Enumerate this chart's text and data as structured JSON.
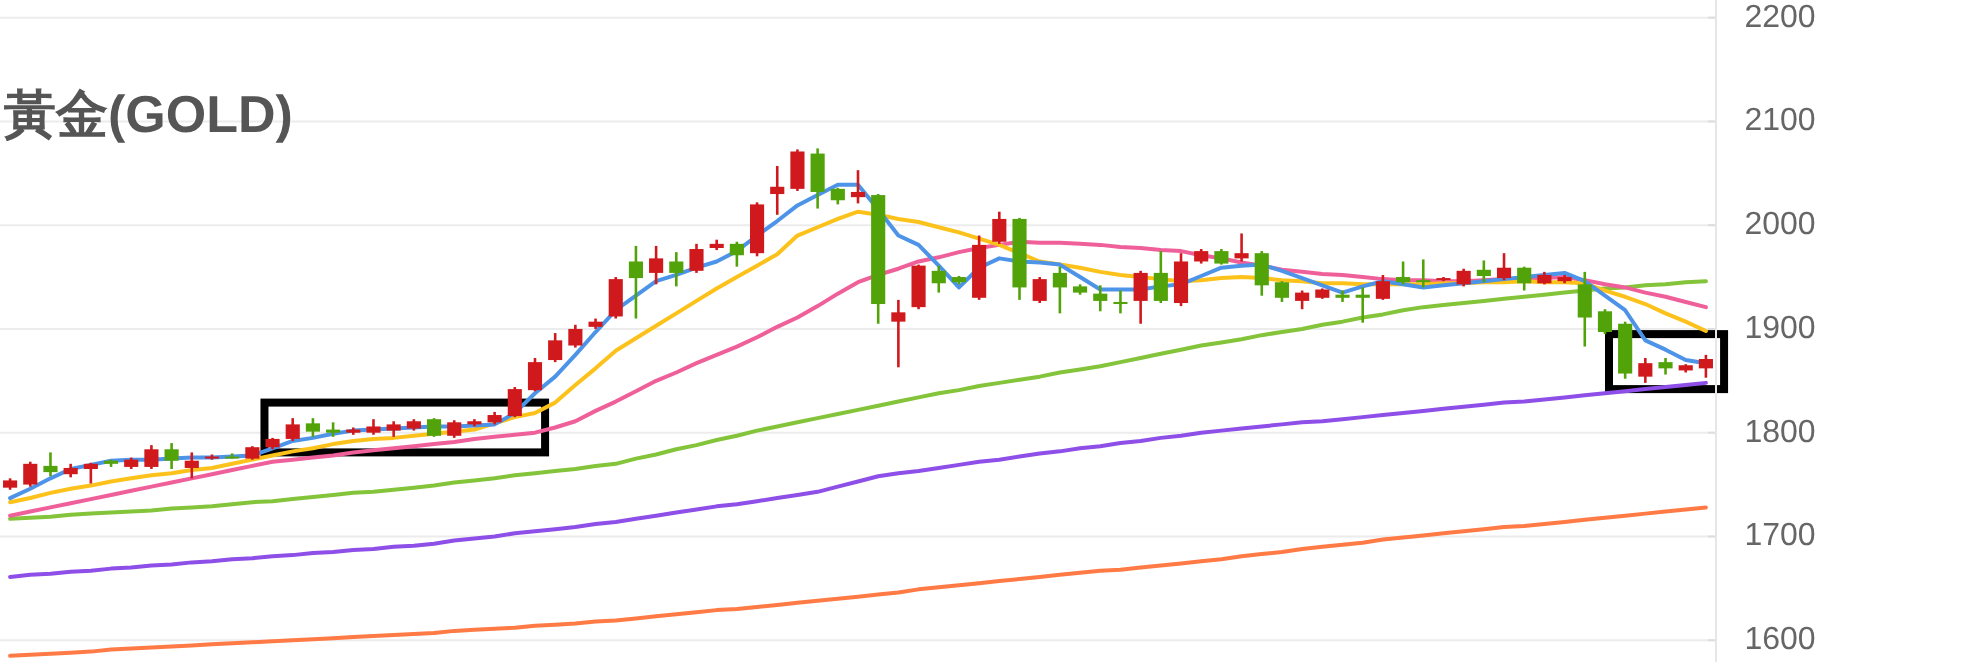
{
  "chart_data": [
    {
      "type": "candlestick",
      "title": "黃金(GOLD)",
      "categories": [
        null,
        null,
        null,
        null,
        null,
        null,
        null,
        null,
        null,
        null,
        null,
        null,
        null,
        null,
        null,
        null,
        null,
        null,
        null,
        null,
        null,
        null,
        null,
        null,
        null,
        null,
        null,
        null,
        null,
        null,
        null,
        null,
        null,
        null,
        null,
        null,
        null,
        null,
        null,
        null,
        null,
        null,
        null,
        null,
        null,
        null,
        null,
        null,
        null,
        null,
        null,
        null,
        null,
        null,
        null,
        null,
        null,
        null,
        null,
        null,
        null,
        null,
        null,
        null,
        null,
        null,
        null,
        null,
        null,
        null,
        null,
        null,
        null,
        null,
        null,
        null,
        null,
        null,
        null,
        null,
        null,
        null,
        null,
        null,
        null
      ],
      "ohlc": [
        [
          1747,
          1756,
          1745,
          1754
        ],
        [
          1750,
          1772,
          1748,
          1770
        ],
        [
          1768,
          1781,
          1758,
          1762
        ],
        [
          1760,
          1770,
          1757,
          1766
        ],
        [
          1765,
          1771,
          1751,
          1770
        ],
        [
          1773,
          1774,
          1767,
          1770
        ],
        [
          1767,
          1776,
          1765,
          1774
        ],
        [
          1767,
          1788,
          1765,
          1784
        ],
        [
          1784,
          1790,
          1765,
          1773
        ],
        [
          1766,
          1781,
          1756,
          1773
        ],
        [
          1776,
          1779,
          1774,
          1777
        ],
        [
          1777,
          1780,
          1775,
          1776
        ],
        [
          1775,
          1787,
          1774,
          1786
        ],
        [
          1786,
          1795,
          1784,
          1794
        ],
        [
          1794,
          1814,
          1792,
          1808
        ],
        [
          1809,
          1814,
          1796,
          1801
        ],
        [
          1803,
          1810,
          1796,
          1800
        ],
        [
          1800,
          1805,
          1798,
          1803
        ],
        [
          1800,
          1813,
          1798,
          1806
        ],
        [
          1802,
          1811,
          1796,
          1808
        ],
        [
          1804,
          1813,
          1802,
          1811
        ],
        [
          1813,
          1814,
          1796,
          1797
        ],
        [
          1797,
          1812,
          1795,
          1810
        ],
        [
          1808,
          1813,
          1806,
          1811
        ],
        [
          1810,
          1820,
          1808,
          1817
        ],
        [
          1816,
          1844,
          1815,
          1842
        ],
        [
          1841,
          1872,
          1840,
          1868
        ],
        [
          1870,
          1896,
          1868,
          1889
        ],
        [
          1884,
          1904,
          1882,
          1900
        ],
        [
          1902,
          1910,
          1900,
          1907
        ],
        [
          1912,
          1950,
          1910,
          1948
        ],
        [
          1965,
          1980,
          1910,
          1949
        ],
        [
          1954,
          1980,
          1943,
          1968
        ],
        [
          1965,
          1974,
          1941,
          1954
        ],
        [
          1956,
          1982,
          1954,
          1977
        ],
        [
          1978,
          1986,
          1976,
          1982
        ],
        [
          1982,
          1984,
          1960,
          1971
        ],
        [
          1973,
          2022,
          1970,
          2020
        ],
        [
          2030,
          2057,
          2010,
          2037
        ],
        [
          2035,
          2073,
          2033,
          2071
        ],
        [
          2069,
          2074,
          2016,
          2032
        ],
        [
          2035,
          2036,
          2020,
          2024
        ],
        [
          2027,
          2053,
          2021,
          2032
        ],
        [
          2029,
          2030,
          1905,
          1924
        ],
        [
          1907,
          1928,
          1863,
          1916
        ],
        [
          1921,
          1962,
          1919,
          1961
        ],
        [
          1956,
          1961,
          1935,
          1944
        ],
        [
          1950,
          1951,
          1943,
          1945
        ],
        [
          1930,
          1990,
          1928,
          1981
        ],
        [
          1984,
          2013,
          1982,
          2006
        ],
        [
          2006,
          2007,
          1928,
          1940
        ],
        [
          1927,
          1950,
          1925,
          1948
        ],
        [
          1954,
          1960,
          1915,
          1940
        ],
        [
          1941,
          1943,
          1933,
          1935
        ],
        [
          1934,
          1942,
          1917,
          1927
        ],
        [
          1926,
          1937,
          1915,
          1924
        ],
        [
          1927,
          1956,
          1905,
          1954
        ],
        [
          1954,
          1975,
          1925,
          1927
        ],
        [
          1925,
          1973,
          1922,
          1965
        ],
        [
          1965,
          1977,
          1963,
          1975
        ],
        [
          1975,
          1977,
          1962,
          1963
        ],
        [
          1968,
          1992,
          1965,
          1973
        ],
        [
          1973,
          1975,
          1932,
          1942
        ],
        [
          1945,
          1946,
          1926,
          1930
        ],
        [
          1927,
          1937,
          1919,
          1935
        ],
        [
          1930,
          1939,
          1929,
          1938
        ],
        [
          1933,
          1937,
          1926,
          1930
        ],
        [
          1933,
          1940,
          1906,
          1930
        ],
        [
          1929,
          1952,
          1928,
          1946
        ],
        [
          1950,
          1965,
          1943,
          1945
        ],
        [
          1947,
          1967,
          1940,
          1945
        ],
        [
          1948,
          1950,
          1946,
          1949
        ],
        [
          1943,
          1958,
          1941,
          1956
        ],
        [
          1957,
          1966,
          1945,
          1951
        ],
        [
          1949,
          1973,
          1947,
          1959
        ],
        [
          1959,
          1960,
          1937,
          1944
        ],
        [
          1944,
          1955,
          1943,
          1952
        ],
        [
          1946,
          1952,
          1944,
          1950
        ],
        [
          1943,
          1955,
          1883,
          1911
        ],
        [
          1917,
          1919,
          1895,
          1897
        ],
        [
          1905,
          1907,
          1852,
          1857
        ],
        [
          1854,
          1872,
          1848,
          1867
        ],
        [
          1868,
          1872,
          1856,
          1862
        ],
        [
          1860,
          1866,
          1858,
          1865
        ],
        [
          1862,
          1875,
          1853,
          1871
        ]
      ],
      "colors": [
        "#d0191c",
        "#d0191c",
        "#52a30a",
        "#d0191c",
        "#d0191c",
        "#52a30a",
        "#d0191c",
        "#d0191c",
        "#52a30a",
        "#d0191c",
        "#d0191c",
        "#52a30a",
        "#d0191c",
        "#d0191c",
        "#d0191c",
        "#52a30a",
        "#52a30a",
        "#d0191c",
        "#d0191c",
        "#d0191c",
        "#d0191c",
        "#52a30a",
        "#d0191c",
        "#d0191c",
        "#d0191c",
        "#d0191c",
        "#d0191c",
        "#d0191c",
        "#d0191c",
        "#d0191c",
        "#d0191c",
        "#52a30a",
        "#d0191c",
        "#52a30a",
        "#d0191c",
        "#d0191c",
        "#52a30a",
        "#d0191c",
        "#d0191c",
        "#d0191c",
        "#52a30a",
        "#52a30a",
        "#d0191c",
        "#52a30a",
        "#d0191c",
        "#d0191c",
        "#52a30a",
        "#52a30a",
        "#d0191c",
        "#d0191c",
        "#52a30a",
        "#d0191c",
        "#52a30a",
        "#52a30a",
        "#52a30a",
        "#52a30a",
        "#d0191c",
        "#52a30a",
        "#d0191c",
        "#d0191c",
        "#52a30a",
        "#d0191c",
        "#52a30a",
        "#52a30a",
        "#d0191c",
        "#d0191c",
        "#52a30a",
        "#52a30a",
        "#d0191c",
        "#52a30a",
        "#52a30a",
        "#d0191c",
        "#d0191c",
        "#52a30a",
        "#d0191c",
        "#52a30a",
        "#d0191c",
        "#d0191c",
        "#52a30a",
        "#52a30a",
        "#52a30a",
        "#d0191c",
        "#52a30a",
        "#d0191c",
        "#d0191c"
      ],
      "ylim": [
        1579,
        2217
      ],
      "yticks": [
        1600,
        1700,
        1800,
        1900,
        2000,
        2100,
        2200
      ],
      "grid": "y",
      "tick_labels": "y"
    },
    {
      "type": "line",
      "categories": [
        null,
        null,
        null,
        null,
        null,
        null,
        null,
        null,
        null,
        null,
        null,
        null,
        null,
        null,
        null,
        null,
        null,
        null,
        null,
        null,
        null,
        null,
        null,
        null,
        null,
        null,
        null,
        null,
        null,
        null,
        null,
        null,
        null,
        null,
        null,
        null,
        null,
        null,
        null,
        null,
        null,
        null,
        null,
        null,
        null,
        null,
        null,
        null,
        null,
        null,
        null,
        null,
        null,
        null,
        null,
        null,
        null,
        null,
        null,
        null,
        null,
        null,
        null,
        null,
        null,
        null,
        null,
        null,
        null,
        null,
        null,
        null,
        null,
        null,
        null,
        null,
        null,
        null,
        null,
        null,
        null,
        null,
        null,
        null,
        null
      ],
      "series": [
        {
          "color": "#ff7a45",
          "values": [
            1585,
            1586,
            1587,
            1588,
            1589,
            1591,
            1592,
            1593,
            1594,
            1595,
            1596,
            1597,
            1598,
            1599,
            1600,
            1601,
            1602,
            1603,
            1604,
            1605,
            1606,
            1607,
            1609,
            1610,
            1611,
            1612,
            1614,
            1615,
            1616,
            1618,
            1619,
            1621,
            1623,
            1625,
            1627,
            1629,
            1630,
            1632,
            1634,
            1636,
            1638,
            1640,
            1642,
            1644,
            1646,
            1649,
            1651,
            1653,
            1655,
            1657,
            1659,
            1661,
            1663,
            1665,
            1667,
            1668,
            1670,
            1672,
            1674,
            1676,
            1678,
            1681,
            1683,
            1685,
            1688,
            1690,
            1692,
            1694,
            1697,
            1699,
            1701,
            1703,
            1705,
            1707,
            1709,
            1710,
            1712,
            1714,
            1716,
            1718,
            1720,
            1722,
            1724,
            1726,
            1728
          ]
        },
        {
          "color": "#8e4fe8",
          "values": [
            1661,
            1663,
            1664,
            1666,
            1667,
            1669,
            1670,
            1672,
            1673,
            1675,
            1676,
            1678,
            1679,
            1681,
            1682,
            1684,
            1685,
            1687,
            1688,
            1690,
            1691,
            1693,
            1696,
            1698,
            1700,
            1703,
            1705,
            1707,
            1709,
            1712,
            1714,
            1717,
            1720,
            1723,
            1726,
            1729,
            1731,
            1734,
            1737,
            1740,
            1743,
            1748,
            1753,
            1758,
            1761,
            1763,
            1766,
            1769,
            1772,
            1774,
            1777,
            1780,
            1782,
            1785,
            1787,
            1790,
            1792,
            1795,
            1797,
            1800,
            1802,
            1804,
            1806,
            1808,
            1810,
            1811,
            1813,
            1815,
            1817,
            1819,
            1821,
            1823,
            1825,
            1827,
            1829,
            1830,
            1832,
            1834,
            1836,
            1838,
            1840,
            1842,
            1844,
            1846,
            1848
          ]
        },
        {
          "color": "#84c43a",
          "values": [
            1717,
            1718,
            1719,
            1721,
            1722,
            1723,
            1724,
            1725,
            1727,
            1728,
            1729,
            1731,
            1733,
            1734,
            1736,
            1738,
            1740,
            1742,
            1743,
            1745,
            1747,
            1749,
            1752,
            1754,
            1756,
            1759,
            1761,
            1763,
            1765,
            1768,
            1770,
            1775,
            1779,
            1784,
            1788,
            1793,
            1797,
            1802,
            1806,
            1810,
            1814,
            1818,
            1822,
            1826,
            1830,
            1834,
            1838,
            1841,
            1845,
            1848,
            1851,
            1854,
            1858,
            1861,
            1864,
            1868,
            1872,
            1876,
            1880,
            1884,
            1887,
            1890,
            1894,
            1897,
            1900,
            1904,
            1907,
            1911,
            1914,
            1918,
            1921,
            1923,
            1925,
            1927,
            1929,
            1931,
            1933,
            1935,
            1937,
            1939,
            1940,
            1942,
            1943,
            1945,
            1946
          ]
        },
        {
          "color": "#ef5f9a",
          "values": [
            1720,
            1724,
            1728,
            1732,
            1736,
            1740,
            1744,
            1748,
            1752,
            1756,
            1760,
            1764,
            1768,
            1772,
            1774,
            1776,
            1778,
            1781,
            1783,
            1785,
            1787,
            1789,
            1791,
            1794,
            1796,
            1798,
            1800,
            1805,
            1811,
            1821,
            1830,
            1840,
            1850,
            1858,
            1867,
            1875,
            1883,
            1892,
            1902,
            1911,
            1922,
            1934,
            1945,
            1952,
            1958,
            1965,
            1969,
            1974,
            1978,
            1981,
            1984,
            1983,
            1983,
            1982,
            1981,
            1979,
            1978,
            1976,
            1975,
            1971,
            1968,
            1964,
            1961,
            1957,
            1955,
            1953,
            1952,
            1950,
            1948,
            1947,
            1947,
            1946,
            1946,
            1947,
            1948,
            1948,
            1949,
            1950,
            1947,
            1943,
            1940,
            1935,
            1931,
            1926,
            1921
          ]
        },
        {
          "color": "#fcc21b",
          "values": [
            1733,
            1737,
            1742,
            1746,
            1749,
            1753,
            1756,
            1759,
            1761,
            1764,
            1766,
            1770,
            1774,
            1778,
            1782,
            1785,
            1789,
            1792,
            1794,
            1795,
            1797,
            1799,
            1801,
            1803,
            1809,
            1815,
            1819,
            1829,
            1846,
            1862,
            1879,
            1891,
            1903,
            1915,
            1927,
            1939,
            1950,
            1961,
            1972,
            1990,
            1998,
            2006,
            2013,
            2010,
            2006,
            2003,
            1998,
            1993,
            1987,
            1981,
            1973,
            1965,
            1962,
            1959,
            1955,
            1952,
            1950,
            1948,
            1946,
            1947,
            1949,
            1950,
            1949,
            1947,
            1946,
            1944,
            1944,
            1943,
            1943,
            1943,
            1943,
            1944,
            1944,
            1945,
            1945,
            1946,
            1945,
            1945,
            1944,
            1937,
            1931,
            1924,
            1915,
            1907,
            1898
          ]
        },
        {
          "color": "#4d94e8",
          "values": [
            1737,
            1746,
            1756,
            1765,
            1769,
            1773,
            1774,
            1774,
            1775,
            1776,
            1776,
            1777,
            1778,
            1785,
            1792,
            1795,
            1799,
            1802,
            1803,
            1804,
            1805,
            1806,
            1806,
            1807,
            1808,
            1819,
            1838,
            1854,
            1875,
            1897,
            1918,
            1932,
            1946,
            1952,
            1959,
            1965,
            1975,
            1990,
            2004,
            2019,
            2029,
            2039,
            2039,
            2015,
            1990,
            1981,
            1961,
            1940,
            1959,
            1968,
            1965,
            1964,
            1962,
            1950,
            1938,
            1938,
            1938,
            1941,
            1943,
            1951,
            1959,
            1961,
            1962,
            1956,
            1949,
            1942,
            1935,
            1941,
            1946,
            1943,
            1940,
            1942,
            1944,
            1946,
            1948,
            1950,
            1952,
            1954,
            1946,
            1932,
            1918,
            1889,
            1880,
            1870,
            1867
          ]
        }
      ],
      "ylim": [
        1579,
        2217
      ],
      "yticks": [
        1600,
        1700,
        1800,
        1900,
        2000,
        2100,
        2200
      ],
      "tick_labels": false
    }
  ]
}
